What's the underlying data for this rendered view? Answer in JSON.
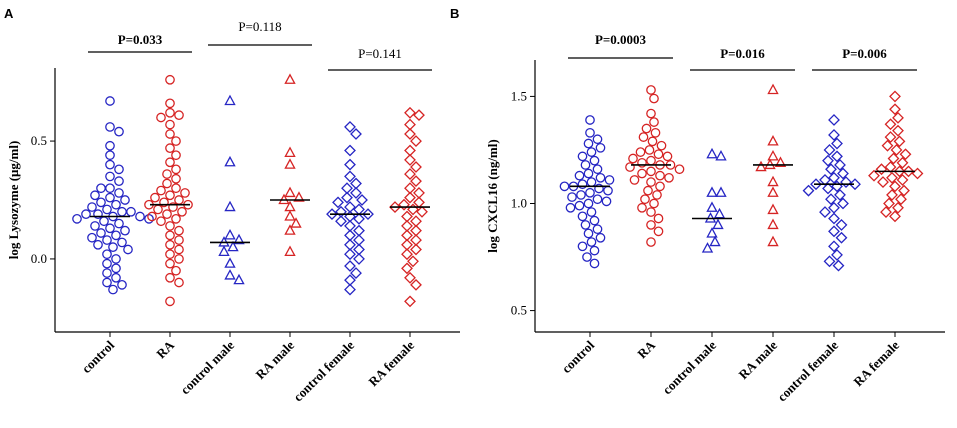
{
  "chart_data": [
    {
      "type": "strip",
      "label": "A",
      "y_label": "log Lysozyme (μg/ml)",
      "ylim": [
        -0.31,
        0.81
      ],
      "yticks": [
        {
          "value": 0,
          "label": "0.0"
        },
        {
          "value": 0.5,
          "label": "0.5"
        }
      ],
      "series": [
        {
          "name": "control",
          "color": "#2626c4",
          "marker": "circle",
          "median": 0.18,
          "values": [
            0.67,
            0.56,
            0.54,
            0.48,
            0.44,
            0.4,
            0.38,
            0.35,
            0.33,
            0.3,
            0.3,
            0.28,
            0.27,
            0.26,
            0.25,
            0.24,
            0.23,
            0.22,
            0.21,
            0.2,
            0.2,
            0.19,
            0.19,
            0.18,
            0.18,
            0.17,
            0.17,
            0.16,
            0.15,
            0.14,
            0.13,
            0.12,
            0.11,
            0.1,
            0.09,
            0.08,
            0.07,
            0.06,
            0.05,
            0.04,
            0.02,
            0.0,
            -0.02,
            -0.04,
            -0.06,
            -0.08,
            -0.1,
            -0.11,
            -0.13
          ]
        },
        {
          "name": "RA",
          "color": "#d62424",
          "marker": "circle",
          "median": 0.23,
          "values": [
            0.76,
            0.66,
            0.62,
            0.61,
            0.6,
            0.57,
            0.53,
            0.5,
            0.47,
            0.44,
            0.41,
            0.38,
            0.36,
            0.34,
            0.32,
            0.3,
            0.29,
            0.28,
            0.27,
            0.26,
            0.25,
            0.24,
            0.23,
            0.23,
            0.22,
            0.21,
            0.2,
            0.19,
            0.18,
            0.17,
            0.16,
            0.14,
            0.12,
            0.1,
            0.08,
            0.06,
            0.04,
            0.02,
            0.0,
            -0.02,
            -0.05,
            -0.08,
            -0.1,
            -0.18
          ]
        },
        {
          "name": "control male",
          "color": "#2626c4",
          "marker": "triangle",
          "median": 0.07,
          "values": [
            0.67,
            0.41,
            0.22,
            0.1,
            0.08,
            0.07,
            0.05,
            0.03,
            -0.02,
            -0.07,
            -0.09
          ]
        },
        {
          "name": "RA male",
          "color": "#d62424",
          "marker": "triangle",
          "median": 0.25,
          "values": [
            0.76,
            0.45,
            0.4,
            0.28,
            0.26,
            0.25,
            0.22,
            0.18,
            0.15,
            0.12,
            0.03
          ]
        },
        {
          "name": "control female",
          "color": "#2626c4",
          "marker": "diamond",
          "median": 0.19,
          "values": [
            0.56,
            0.53,
            0.46,
            0.4,
            0.35,
            0.32,
            0.3,
            0.28,
            0.26,
            0.25,
            0.24,
            0.22,
            0.21,
            0.2,
            0.19,
            0.19,
            0.18,
            0.17,
            0.16,
            0.14,
            0.12,
            0.1,
            0.08,
            0.06,
            0.04,
            0.02,
            0.0,
            -0.03,
            -0.06,
            -0.09,
            -0.13
          ]
        },
        {
          "name": "RA female",
          "color": "#d62424",
          "marker": "diamond",
          "median": 0.22,
          "values": [
            0.62,
            0.61,
            0.57,
            0.53,
            0.5,
            0.46,
            0.42,
            0.39,
            0.36,
            0.33,
            0.3,
            0.28,
            0.26,
            0.24,
            0.23,
            0.22,
            0.21,
            0.2,
            0.18,
            0.16,
            0.14,
            0.12,
            0.1,
            0.08,
            0.06,
            0.04,
            0.02,
            -0.01,
            -0.04,
            -0.08,
            -0.11,
            -0.18
          ]
        }
      ],
      "annotations": [
        {
          "text": "P=0.033",
          "bold": true
        },
        {
          "text": "P=0.118",
          "bold": false
        },
        {
          "text": "P=0.141",
          "bold": false
        }
      ]
    },
    {
      "type": "strip",
      "label": "B",
      "y_label": "log CXCL16 (ng/ml)",
      "ylim": [
        0.4,
        1.67
      ],
      "yticks": [
        0.5,
        {
          "value": 1,
          "label": "1.0"
        },
        1.5
      ],
      "series": [
        {
          "name": "control",
          "color": "#2626c4",
          "marker": "circle",
          "median": 1.08,
          "values": [
            1.39,
            1.33,
            1.3,
            1.28,
            1.26,
            1.24,
            1.22,
            1.2,
            1.18,
            1.16,
            1.14,
            1.13,
            1.12,
            1.11,
            1.1,
            1.09,
            1.08,
            1.08,
            1.07,
            1.06,
            1.05,
            1.04,
            1.03,
            1.02,
            1.01,
            1.0,
            0.99,
            0.98,
            0.96,
            0.94,
            0.92,
            0.9,
            0.88,
            0.86,
            0.84,
            0.82,
            0.8,
            0.78,
            0.75,
            0.72
          ]
        },
        {
          "name": "RA",
          "color": "#d62424",
          "marker": "circle",
          "median": 1.18,
          "values": [
            1.53,
            1.49,
            1.42,
            1.38,
            1.35,
            1.33,
            1.31,
            1.29,
            1.27,
            1.25,
            1.24,
            1.23,
            1.22,
            1.21,
            1.2,
            1.19,
            1.18,
            1.18,
            1.17,
            1.16,
            1.15,
            1.14,
            1.13,
            1.12,
            1.11,
            1.1,
            1.08,
            1.06,
            1.04,
            1.02,
            1.0,
            0.98,
            0.96,
            0.93,
            0.9,
            0.87,
            0.82
          ]
        },
        {
          "name": "control male",
          "color": "#2626c4",
          "marker": "triangle",
          "median": 0.93,
          "values": [
            1.23,
            1.22,
            1.05,
            1.05,
            0.98,
            0.95,
            0.93,
            0.9,
            0.86,
            0.82,
            0.79
          ]
        },
        {
          "name": "RA male",
          "color": "#d62424",
          "marker": "triangle",
          "median": 1.18,
          "values": [
            1.53,
            1.29,
            1.22,
            1.19,
            1.18,
            1.17,
            1.1,
            1.05,
            0.97,
            0.9,
            0.82
          ]
        },
        {
          "name": "control female",
          "color": "#2626c4",
          "marker": "diamond",
          "median": 1.09,
          "values": [
            1.39,
            1.32,
            1.28,
            1.25,
            1.22,
            1.2,
            1.18,
            1.16,
            1.14,
            1.12,
            1.11,
            1.1,
            1.09,
            1.09,
            1.08,
            1.07,
            1.06,
            1.04,
            1.02,
            1.0,
            0.98,
            0.96,
            0.93,
            0.9,
            0.87,
            0.84,
            0.8,
            0.76,
            0.73,
            0.71
          ]
        },
        {
          "name": "RA female",
          "color": "#d62424",
          "marker": "diamond",
          "median": 1.15,
          "values": [
            1.5,
            1.44,
            1.4,
            1.37,
            1.34,
            1.31,
            1.29,
            1.27,
            1.25,
            1.23,
            1.21,
            1.19,
            1.17,
            1.16,
            1.15,
            1.15,
            1.14,
            1.13,
            1.12,
            1.11,
            1.1,
            1.08,
            1.06,
            1.04,
            1.02,
            1.0,
            0.98,
            0.96,
            0.94
          ]
        }
      ],
      "annotations": [
        {
          "text": "P=0.0003",
          "bold": true
        },
        {
          "text": "P=0.016",
          "bold": true
        },
        {
          "text": "P=0.006",
          "bold": true
        }
      ]
    }
  ]
}
